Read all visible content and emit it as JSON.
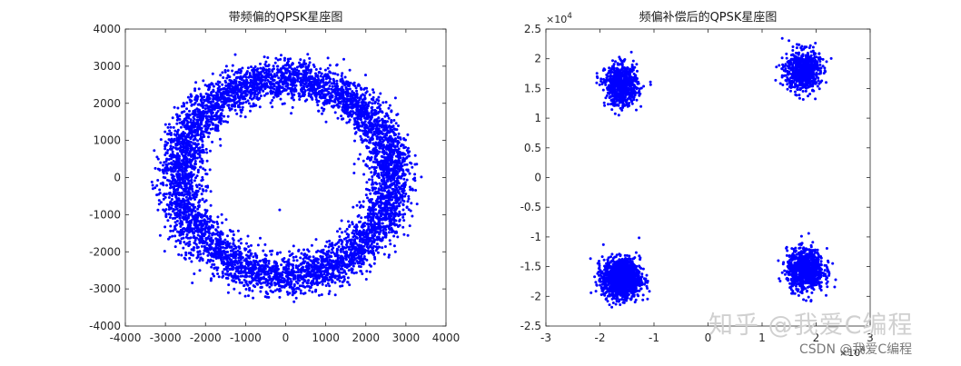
{
  "chart_data": [
    {
      "type": "scatter",
      "title": "带频偏的QPSK星座图",
      "xlim": [
        -4000,
        4000
      ],
      "ylim": [
        -4000,
        4000
      ],
      "xticks": [
        -4000,
        -3000,
        -2000,
        -1000,
        0,
        1000,
        2000,
        3000,
        4000
      ],
      "yticks": [
        -4000,
        -3000,
        -2000,
        -1000,
        0,
        1000,
        2000,
        3000,
        4000
      ],
      "xtick_labels": [
        "-4000",
        "-3000",
        "-2000",
        "-1000",
        "0",
        "1000",
        "2000",
        "3000",
        "4000"
      ],
      "ytick_labels": [
        "-4000",
        "-3000",
        "-2000",
        "-1000",
        "0",
        "1000",
        "2000",
        "3000",
        "4000"
      ],
      "grid": false,
      "color": "#0000ff",
      "distribution": {
        "shape": "ring",
        "center": [
          0,
          0
        ],
        "radius_mean": 2650,
        "radius_std": 270,
        "n_points": 6000,
        "outlier": [
          -150,
          -870
        ]
      }
    },
    {
      "type": "scatter",
      "title": "频偏补偿后的QPSK星座图",
      "xlim": [
        -3,
        3
      ],
      "ylim": [
        -2.5,
        2.5
      ],
      "xticks": [
        -3,
        -2,
        -1,
        0,
        1,
        2,
        3
      ],
      "yticks": [
        -2.5,
        -2,
        -1.5,
        -1,
        -0.5,
        0,
        0.5,
        1,
        1.5,
        2,
        2.5
      ],
      "xtick_labels": [
        "-3",
        "-2",
        "-1",
        "0",
        "1",
        "2",
        "3"
      ],
      "ytick_labels": [
        "-2.5",
        "-2",
        "-1.5",
        "-1",
        "-0.5",
        "0",
        "0.5",
        "1",
        "1.5",
        "2",
        "2.5"
      ],
      "x_exponent_label": "×10",
      "x_exponent_power": "4",
      "y_exponent_label": "×10",
      "y_exponent_power": "4",
      "grid": false,
      "color": "#0000ff",
      "clusters": [
        {
          "center": [
            -1.6,
            1.55
          ],
          "std": [
            0.15,
            0.17
          ],
          "n_points": 700
        },
        {
          "center": [
            1.75,
            1.8
          ],
          "std": [
            0.16,
            0.17
          ],
          "n_points": 700
        },
        {
          "center": [
            -1.6,
            -1.7
          ],
          "std": [
            0.17,
            0.16
          ],
          "n_points": 1500
        },
        {
          "center": [
            1.8,
            -1.55
          ],
          "std": [
            0.17,
            0.17
          ],
          "n_points": 900
        }
      ]
    }
  ],
  "watermark": {
    "main": "知乎 @我爱C编程",
    "sub": "CSDN @我爱C编程"
  }
}
